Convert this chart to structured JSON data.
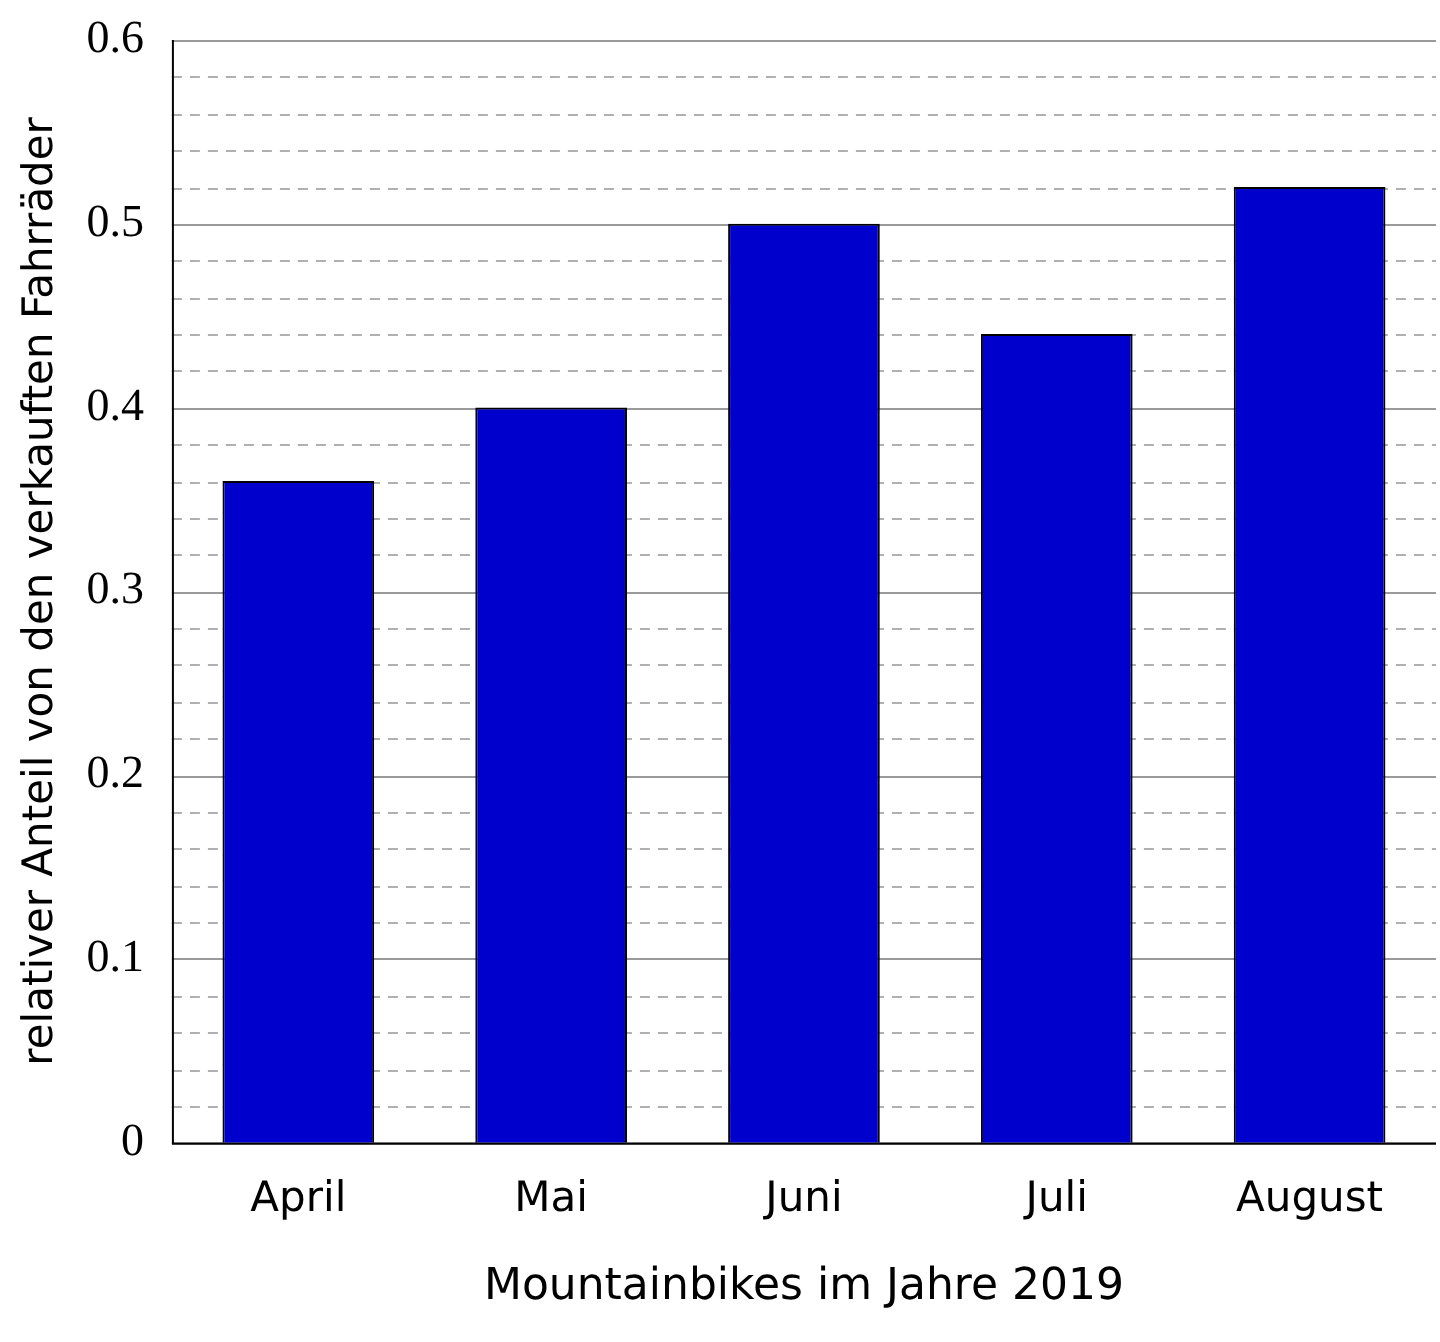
{
  "chart_data": {
    "type": "bar",
    "xlabel": "Mountainbikes im Jahre 2019",
    "ylabel": "relativer Anteil von den verkauften Fahrräder",
    "categories": [
      "April",
      "Mai",
      "Juni",
      "Juli",
      "August"
    ],
    "values": [
      0.36,
      0.4,
      0.5,
      0.44,
      0.52
    ],
    "color": "#0000cc",
    "ylim": [
      0,
      0.6
    ],
    "yticks": [
      0,
      {
        "value": 0.02,
        "label": null
      },
      {
        "value": 0.04,
        "label": null
      },
      {
        "value": 0.06,
        "label": null
      },
      {
        "value": 0.08,
        "label": null
      },
      0.1,
      {
        "value": 0.12,
        "label": null
      },
      {
        "value": 0.14,
        "label": null
      },
      {
        "value": 0.16,
        "label": null
      },
      {
        "value": 0.18,
        "label": null
      },
      0.2,
      {
        "value": 0.22,
        "label": null
      },
      {
        "value": 0.24,
        "label": null
      },
      {
        "value": 0.26,
        "label": null
      },
      {
        "value": 0.28,
        "label": null
      },
      0.3,
      {
        "value": 0.32,
        "label": null
      },
      {
        "value": 0.34,
        "label": null
      },
      {
        "value": 0.36,
        "label": null
      },
      {
        "value": 0.38,
        "label": null
      },
      0.4,
      {
        "value": 0.42,
        "label": null
      },
      {
        "value": 0.44,
        "label": null
      },
      {
        "value": 0.46,
        "label": null
      },
      {
        "value": 0.48,
        "label": null
      },
      0.5,
      {
        "value": 0.52,
        "label": null
      },
      {
        "value": 0.54,
        "label": null
      },
      {
        "value": 0.56,
        "label": null
      },
      {
        "value": 0.58,
        "label": null
      },
      0.6
    ],
    "grid": "y",
    "legend": false
  }
}
